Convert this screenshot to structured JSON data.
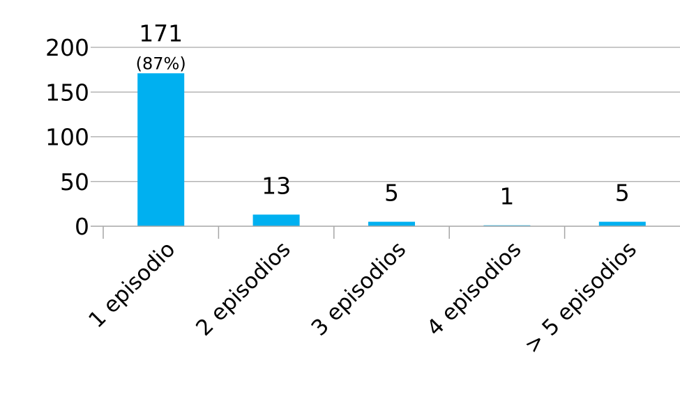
{
  "chart_data": {
    "type": "bar",
    "categories": [
      "1 episodio",
      "2 episodios",
      "3 episodios",
      "4 episodios",
      "> 5 episodios"
    ],
    "values": [
      171,
      13,
      5,
      1,
      5
    ],
    "data_labels": [
      "171",
      "13",
      "5",
      "1",
      "5"
    ],
    "percent_labels": [
      "(87%)",
      "",
      "",
      "",
      ""
    ],
    "yticks": [
      "0",
      "50",
      "100",
      "150",
      "200"
    ],
    "ylim": [
      0,
      200
    ],
    "title": "",
    "xlabel": "",
    "ylabel": "",
    "grid": true,
    "legend": "none",
    "bar_color": "#00B0F0",
    "grid_color": "#A6A6A6",
    "axis_color": "#A6A6A6"
  }
}
